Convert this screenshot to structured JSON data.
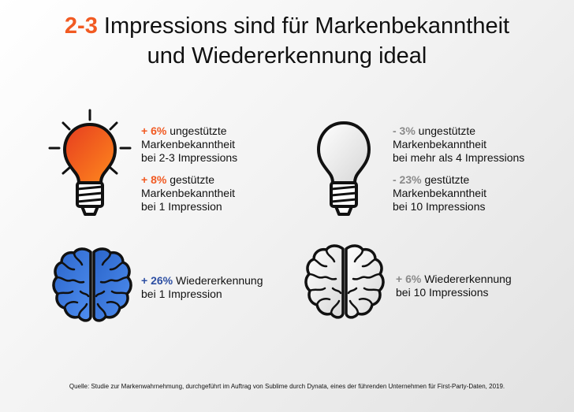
{
  "title": {
    "highlight": "2-3",
    "line1_rest": " Impressions sind für Markenbekanntheit",
    "line2": "und Wiedererkennung ideal"
  },
  "quadrants": {
    "top_left": {
      "icon": "lightbulb-icon-orange",
      "items": [
        {
          "value": "+ 6%",
          "line1": " ungestützte",
          "line2": "Markenbekanntheit",
          "line3": "bei 2-3 Impressions"
        },
        {
          "value": "+ 8%",
          "line1": " gestützte",
          "line2": "Markenbekanntheit",
          "line3": "bei 1 Impression"
        }
      ]
    },
    "top_right": {
      "icon": "lightbulb-icon-white",
      "items": [
        {
          "value": "- 3%",
          "line1": " ungestützte",
          "line2": "Markenbekanntheit",
          "line3": "bei mehr als 4 Impressions"
        },
        {
          "value": "- 23%",
          "line1": " gestützte",
          "line2": "Markenbekanntheit",
          "line3": "bei 10 Impressions"
        }
      ]
    },
    "bottom_left": {
      "icon": "brain-icon-blue",
      "items": [
        {
          "value": "+ 26%",
          "line1": " Wiedererkennung",
          "line2": "bei 1 Impression"
        }
      ]
    },
    "bottom_right": {
      "icon": "brain-icon-white",
      "items": [
        {
          "value": "+ 6%",
          "line1": " Wiedererkennung",
          "line2": "bei 10 Impressions"
        }
      ]
    }
  },
  "source": "Quelle: Studie zur Markenwahrnehmung, durchgeführt im Auftrag von Sublime durch Dynata, eines der führenden Unternehmen für First-Party-Daten, 2019.",
  "colors": {
    "accent_orange": "#f15a22",
    "accent_blue": "#2d4fa3",
    "neutral_gray": "#8a8a8a"
  }
}
